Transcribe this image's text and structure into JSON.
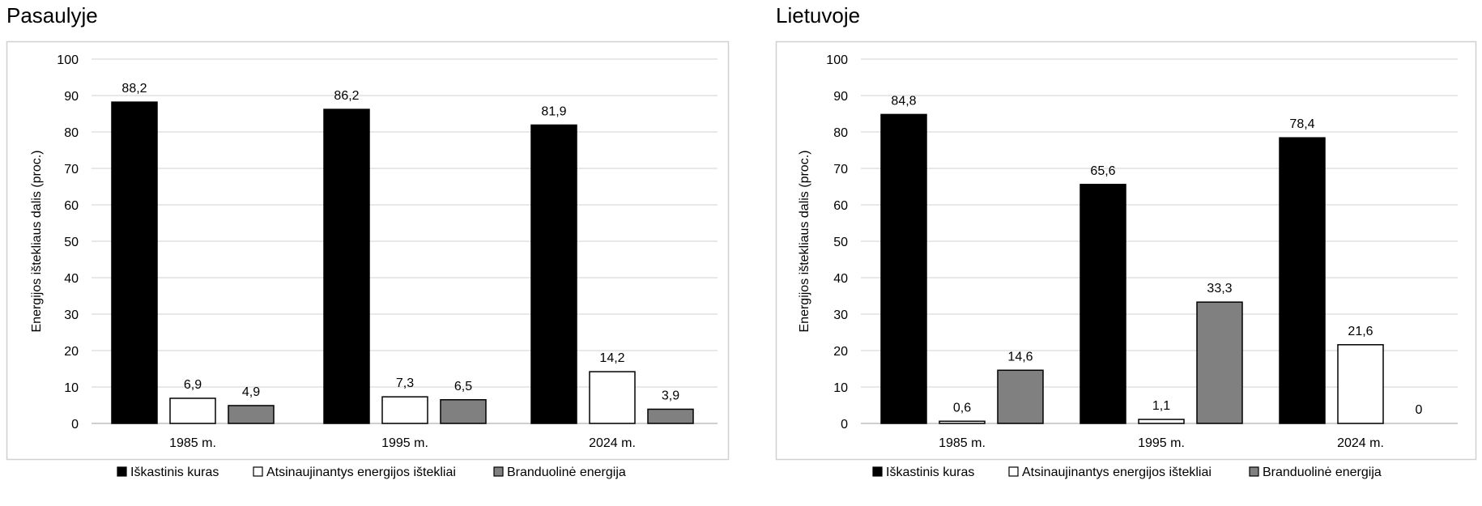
{
  "chart_data": [
    {
      "type": "bar",
      "title": "Pasaulyje",
      "ylabel": "Energijos ištekliaus dalis (proc.)",
      "xlabel": "",
      "categories": [
        "1985 m.",
        "1995 m.",
        "2024 m."
      ],
      "ylim": [
        0,
        100
      ],
      "yticks": [
        0,
        10,
        20,
        30,
        40,
        50,
        60,
        70,
        80,
        90,
        100
      ],
      "grid": true,
      "legend_position": "bottom",
      "series": [
        {
          "name": "Iškastinis kuras",
          "values": [
            88.2,
            86.2,
            81.9
          ],
          "labels": [
            "88,2",
            "86,2",
            "81,9"
          ],
          "color": "#000000"
        },
        {
          "name": "Atsinaujinantys energijos ištekliai",
          "values": [
            6.9,
            7.3,
            14.2
          ],
          "labels": [
            "6,9",
            "7,3",
            "14,2"
          ],
          "color": "#ffffff"
        },
        {
          "name": "Branduolinė energija",
          "values": [
            4.9,
            6.5,
            3.9
          ],
          "labels": [
            "4,9",
            "6,5",
            "3,9"
          ],
          "color": "#808080"
        }
      ]
    },
    {
      "type": "bar",
      "title": "Lietuvoje",
      "ylabel": "Energijos ištekliaus dalis (proc.)",
      "xlabel": "",
      "categories": [
        "1985 m.",
        "1995 m.",
        "2024 m."
      ],
      "ylim": [
        0,
        100
      ],
      "yticks": [
        0,
        10,
        20,
        30,
        40,
        50,
        60,
        70,
        80,
        90,
        100
      ],
      "grid": true,
      "legend_position": "bottom",
      "series": [
        {
          "name": "Iškastinis kuras",
          "values": [
            84.8,
            65.6,
            78.4
          ],
          "labels": [
            "84,8",
            "65,6",
            "78,4"
          ],
          "color": "#000000"
        },
        {
          "name": "Atsinaujinantys energijos ištekliai",
          "values": [
            0.6,
            1.1,
            21.6
          ],
          "labels": [
            "0,6",
            "1,1",
            "21,6"
          ],
          "color": "#ffffff"
        },
        {
          "name": "Branduolinė energija",
          "values": [
            14.6,
            33.3,
            0
          ],
          "labels": [
            "14,6",
            "33,3",
            "0"
          ],
          "color": "#808080"
        }
      ]
    }
  ]
}
